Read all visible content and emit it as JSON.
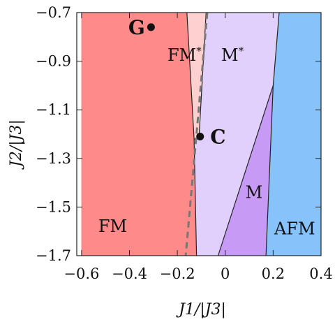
{
  "chart_data": {
    "type": "phase-diagram",
    "xlabel": "J1/|J3|",
    "ylabel": "J2/|J3|",
    "xlim": [
      -0.62,
      0.4
    ],
    "ylim": [
      -1.7,
      -0.7
    ],
    "x_ticks": [
      {
        "value": -0.6,
        "label": "−0.6"
      },
      {
        "value": -0.4,
        "label": "−0.4"
      },
      {
        "value": -0.2,
        "label": "−0.2"
      },
      {
        "value": 0,
        "label": "0"
      },
      {
        "value": 0.2,
        "label": "0.2"
      },
      {
        "value": 0.4,
        "label": "0.4"
      }
    ],
    "y_ticks": [
      {
        "value": -0.7,
        "label": "−0.7"
      },
      {
        "value": -0.9,
        "label": "−0.9"
      },
      {
        "value": -1.1,
        "label": "−1.1"
      },
      {
        "value": -1.3,
        "label": "−1.3"
      },
      {
        "value": -1.5,
        "label": "−1.5"
      },
      {
        "value": -1.7,
        "label": "−1.7"
      }
    ],
    "regions": [
      {
        "label": "FM",
        "color": "#ff8a8a",
        "label_at": [
          -0.47,
          -1.58
        ],
        "polygon": [
          [
            -0.6,
            -0.7
          ],
          [
            -0.16,
            -0.7
          ],
          [
            -0.13,
            -1.22
          ],
          [
            -0.12,
            -1.7
          ],
          [
            -0.6,
            -1.7
          ]
        ]
      },
      {
        "label": "FM*",
        "color": "#ffd0d0",
        "label_at": [
          -0.17,
          -0.875
        ],
        "polygon": [
          [
            -0.16,
            -0.7
          ],
          [
            -0.08,
            -0.7
          ],
          [
            -0.11,
            -1.22
          ],
          [
            -0.13,
            -1.22
          ]
        ]
      },
      {
        "label": "M*",
        "color": "#e0d0fb",
        "label_at": [
          0.03,
          -0.875
        ],
        "polygon": [
          [
            -0.08,
            -0.7
          ],
          [
            0.225,
            -0.7
          ],
          [
            0.2,
            -1.0
          ],
          [
            -0.03,
            -1.7
          ],
          [
            -0.12,
            -1.7
          ],
          [
            -0.13,
            -1.22
          ],
          [
            -0.11,
            -1.22
          ]
        ]
      },
      {
        "label": "M",
        "color": "#c79af5",
        "label_at": [
          0.12,
          -1.44
        ],
        "polygon": [
          [
            0.2,
            -1.0
          ],
          [
            0.17,
            -1.7
          ],
          [
            -0.03,
            -1.7
          ]
        ]
      },
      {
        "label": "AFM",
        "color": "#88c2fb",
        "label_at": [
          0.29,
          -1.59
        ],
        "polygon": [
          [
            0.225,
            -0.7
          ],
          [
            0.4,
            -0.7
          ],
          [
            0.4,
            -1.7
          ],
          [
            0.17,
            -1.7
          ],
          [
            0.2,
            -1.0
          ]
        ]
      }
    ],
    "boundaries": [
      [
        [
          -0.16,
          -0.7
        ],
        [
          -0.13,
          -1.22
        ],
        [
          -0.12,
          -1.7
        ]
      ],
      [
        [
          -0.08,
          -0.7
        ],
        [
          -0.11,
          -1.22
        ]
      ],
      [
        [
          -0.11,
          -1.22
        ],
        [
          -0.13,
          -1.22
        ]
      ],
      [
        [
          0.225,
          -0.7
        ],
        [
          0.2,
          -1.0
        ],
        [
          0.17,
          -1.7
        ]
      ],
      [
        [
          0.2,
          -1.0
        ],
        [
          -0.03,
          -1.7
        ]
      ]
    ],
    "dashed_line": [
      [
        -0.075,
        -0.7
      ],
      [
        -0.165,
        -1.7
      ]
    ],
    "points": [
      {
        "label": "G",
        "x": -0.31,
        "y": -0.76,
        "label_at": [
          -0.37,
          -0.76
        ]
      },
      {
        "label": "C",
        "x": -0.105,
        "y": -1.21,
        "label_at": [
          -0.03,
          -1.21
        ]
      }
    ]
  }
}
